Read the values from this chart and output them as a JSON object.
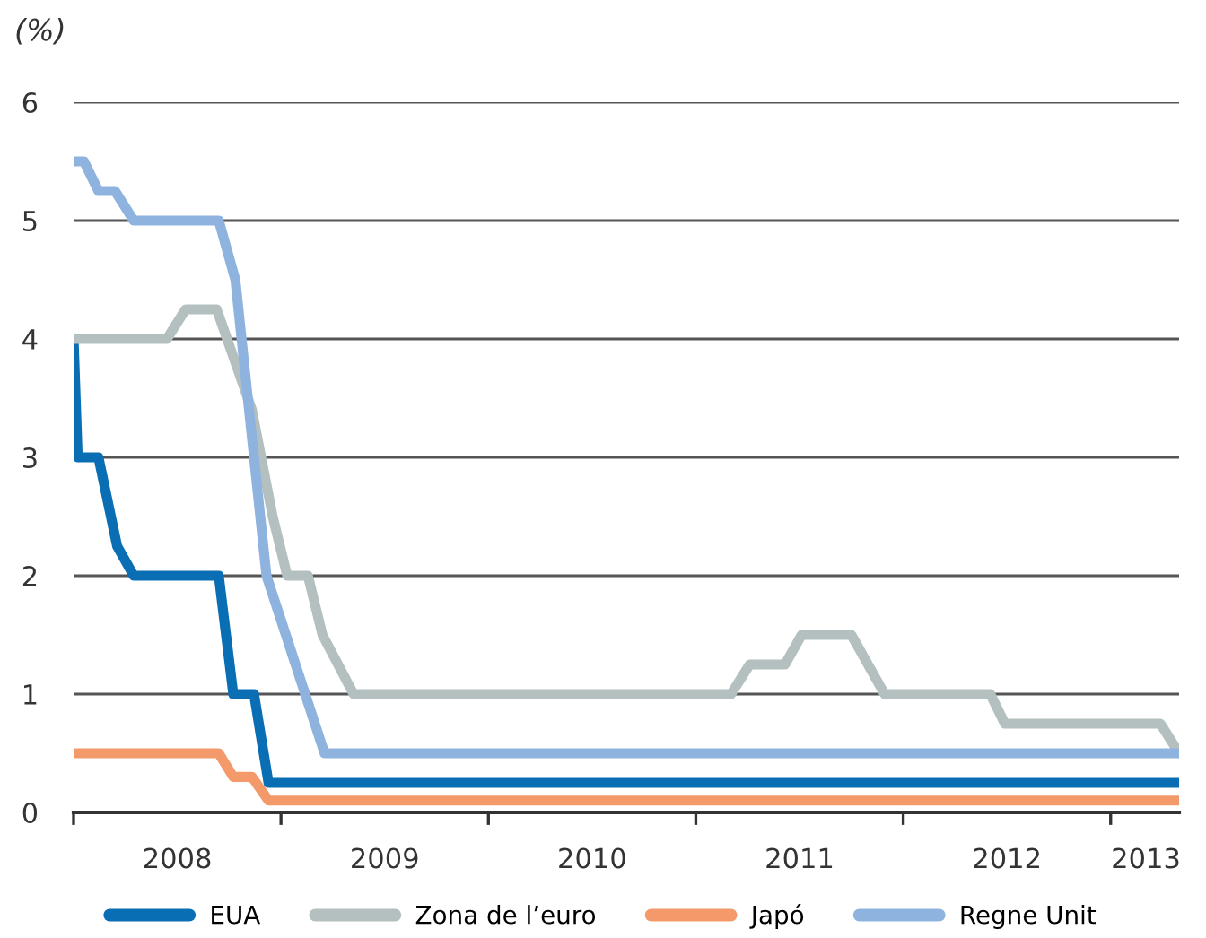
{
  "chart_data": {
    "type": "line",
    "ylabel": "(%)",
    "xlim": [
      2008.0,
      2013.33
    ],
    "ylim": [
      0,
      6
    ],
    "xticks": [
      {
        "value": 2008,
        "label": null
      },
      {
        "value": 2008.5,
        "label": "2008"
      },
      {
        "value": 2009,
        "label": null
      },
      {
        "value": 2009.5,
        "label": "2009"
      },
      {
        "value": 2010,
        "label": null
      },
      {
        "value": 2010.5,
        "label": "2010"
      },
      {
        "value": 2011,
        "label": null
      },
      {
        "value": 2011.5,
        "label": "2011"
      },
      {
        "value": 2012,
        "label": null
      },
      {
        "value": 2012.5,
        "label": "2012"
      },
      {
        "value": 2013,
        "label": null
      },
      {
        "value": 2013.17,
        "label": "2013"
      }
    ],
    "yticks": [
      0,
      1,
      2,
      3,
      4,
      5,
      6
    ],
    "grid": "y",
    "legend": "bottom",
    "marker": "none",
    "line_style": "solid",
    "series": [
      {
        "name": "EUA",
        "color": "#0a6eb4",
        "x": [
          2008.0,
          2008.02,
          2008.12,
          2008.21,
          2008.29,
          2008.7,
          2008.77,
          2008.87,
          2008.94,
          2013.33
        ],
        "values": [
          4.0,
          3.0,
          3.0,
          2.25,
          2.0,
          2.0,
          1.0,
          1.0,
          0.25,
          0.25
        ]
      },
      {
        "name": "Zona de l’euro",
        "color": "#b4c0c0",
        "x": [
          2008.0,
          2008.45,
          2008.54,
          2008.69,
          2008.86,
          2008.96,
          2009.03,
          2009.13,
          2009.2,
          2009.35,
          2011.17,
          2011.26,
          2011.43,
          2011.51,
          2011.75,
          2011.91,
          2012.42,
          2012.49,
          2013.24,
          2013.33
        ],
        "values": [
          4.0,
          4.0,
          4.25,
          4.25,
          3.4,
          2.5,
          2.0,
          2.0,
          1.5,
          1.0,
          1.0,
          1.25,
          1.25,
          1.5,
          1.5,
          1.0,
          1.0,
          0.75,
          0.75,
          0.5
        ]
      },
      {
        "name": "Japó",
        "color": "#f4996a",
        "x": [
          2008.0,
          2008.7,
          2008.77,
          2008.86,
          2008.94,
          2013.33
        ],
        "values": [
          0.5,
          0.5,
          0.3,
          0.3,
          0.1,
          0.1
        ]
      },
      {
        "name": "Regne Unit",
        "color": "#8fb3df",
        "x": [
          2008.0,
          2008.05,
          2008.12,
          2008.2,
          2008.29,
          2008.7,
          2008.78,
          2008.93,
          2009.21,
          2013.33
        ],
        "values": [
          5.5,
          5.5,
          5.25,
          5.25,
          5.0,
          5.0,
          4.5,
          2.0,
          0.5,
          0.5
        ]
      }
    ]
  }
}
